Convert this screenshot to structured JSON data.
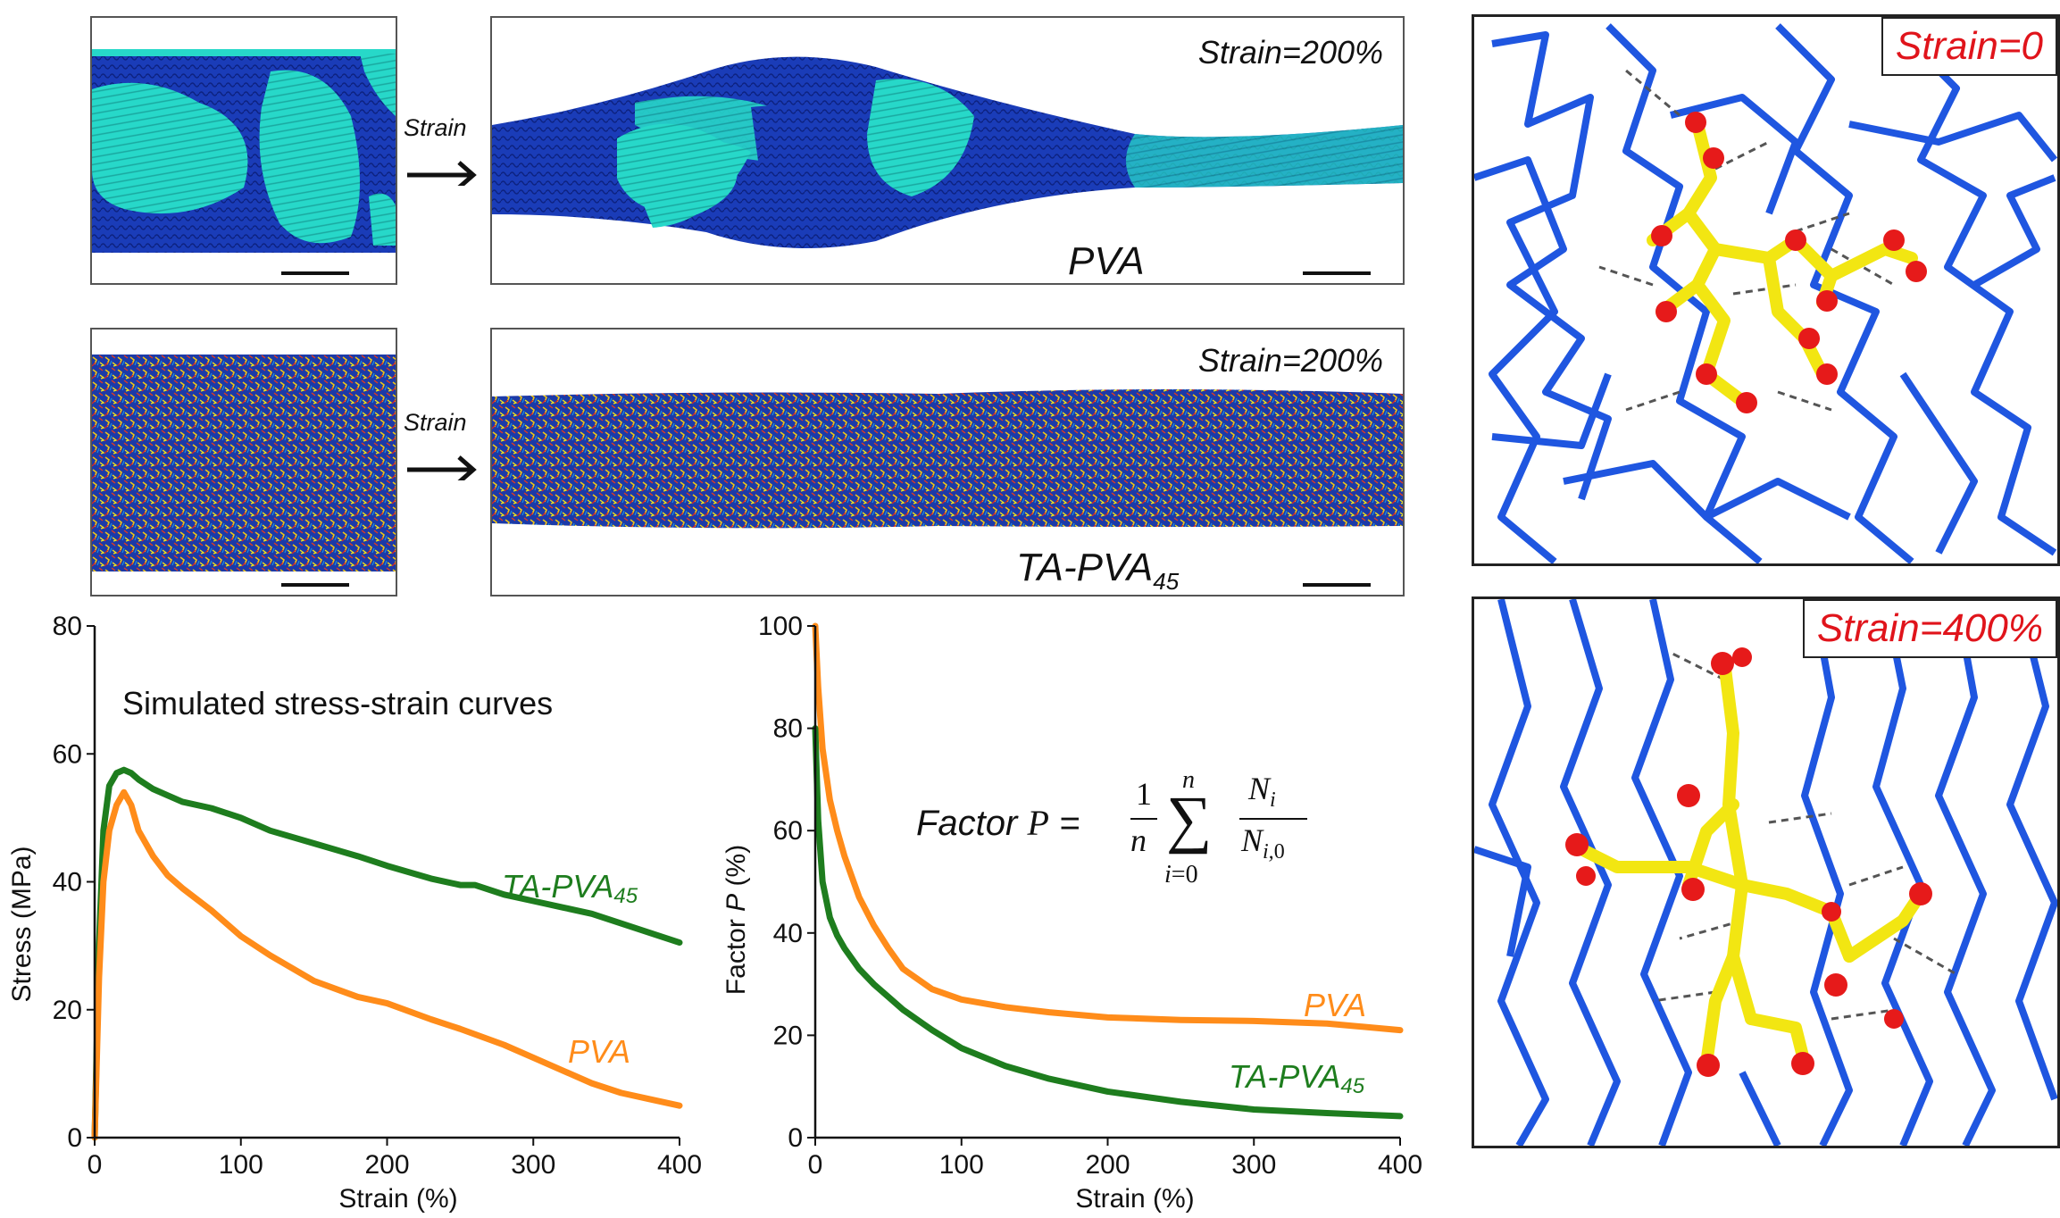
{
  "snapshots": {
    "arrow_label": "Strain",
    "pva_strain_label": "Strain=200%",
    "pva_label": "PVA",
    "ta_strain_label": "Strain=200%",
    "ta_label": "TA-PVA",
    "ta_label_sub": "45"
  },
  "molecules": {
    "top_label": "Strain=0",
    "bottom_label": "Strain=400%"
  },
  "colors": {
    "pva": "#ff8c1a",
    "ta_pva": "#1e7d1e",
    "chain_blue": "#1f56e0",
    "tannic_yellow": "#f2e612",
    "oxygen_red": "#e61a1a",
    "crystal_cyan": "#2ee0d0",
    "amorphous_navy": "#1530a8"
  },
  "chart_data": [
    {
      "type": "line",
      "title": "Simulated stress-strain curves",
      "xlabel": "Strain (%)",
      "ylabel": "Stress (MPa)",
      "xlim": [
        0,
        400
      ],
      "ylim": [
        0,
        80
      ],
      "xticks": [
        0,
        100,
        200,
        300,
        400
      ],
      "yticks": [
        0,
        20,
        40,
        60,
        80
      ],
      "series": [
        {
          "name": "TA-PVA",
          "name_sub": "45",
          "color": "#1e7d1e",
          "x": [
            0,
            3,
            6,
            10,
            15,
            20,
            25,
            30,
            40,
            50,
            60,
            80,
            100,
            120,
            150,
            180,
            200,
            230,
            250,
            260,
            280,
            300,
            320,
            340,
            360,
            380,
            400
          ],
          "y": [
            0,
            30,
            48,
            55,
            57,
            57.5,
            57,
            56,
            54.5,
            53.5,
            52.5,
            51.5,
            50,
            48,
            46,
            44,
            42.5,
            40.5,
            39.5,
            39.5,
            38,
            37,
            36,
            35,
            33.5,
            32,
            30.5
          ]
        },
        {
          "name": "PVA",
          "color": "#ff8c1a",
          "x": [
            0,
            3,
            6,
            10,
            15,
            20,
            25,
            30,
            40,
            50,
            60,
            80,
            100,
            120,
            150,
            180,
            200,
            230,
            250,
            280,
            300,
            320,
            340,
            360,
            380,
            400
          ],
          "y": [
            0,
            25,
            40,
            48,
            52,
            54,
            52,
            48,
            44,
            41,
            39,
            35.5,
            31.5,
            28.5,
            24.5,
            22,
            21,
            18.5,
            17,
            14.5,
            12.5,
            10.5,
            8.5,
            7,
            6,
            5
          ]
        }
      ]
    },
    {
      "type": "line",
      "xlabel": "Strain (%)",
      "ylabel": "Factor",
      "ylabel_var": "P",
      "ylabel_unit": "(%)",
      "xlim": [
        0,
        400
      ],
      "ylim": [
        0,
        100
      ],
      "xticks": [
        0,
        100,
        200,
        300,
        400
      ],
      "yticks": [
        0,
        20,
        40,
        60,
        80,
        100
      ],
      "annotation": "Factor P = (1/n) Σ_{i=0}^{n} N_i / N_{i,0}",
      "series": [
        {
          "name": "PVA",
          "color": "#ff8c1a",
          "x": [
            0,
            2,
            5,
            10,
            15,
            20,
            30,
            40,
            50,
            60,
            80,
            100,
            130,
            160,
            200,
            250,
            300,
            350,
            400
          ],
          "y": [
            100,
            88,
            76,
            66,
            60,
            55,
            47,
            41.5,
            37,
            33,
            29,
            27,
            25.5,
            24.5,
            23.5,
            23,
            22.8,
            22.3,
            21
          ]
        },
        {
          "name": "TA-PVA",
          "name_sub": "45",
          "color": "#1e7d1e",
          "x": [
            0,
            2,
            5,
            10,
            15,
            20,
            30,
            40,
            50,
            60,
            80,
            100,
            130,
            160,
            200,
            250,
            300,
            350,
            400
          ],
          "y": [
            80,
            62,
            50,
            43,
            39.5,
            37,
            33,
            30,
            27.5,
            25,
            21,
            17.5,
            14,
            11.5,
            9,
            7,
            5.5,
            4.8,
            4.2
          ]
        }
      ]
    }
  ]
}
